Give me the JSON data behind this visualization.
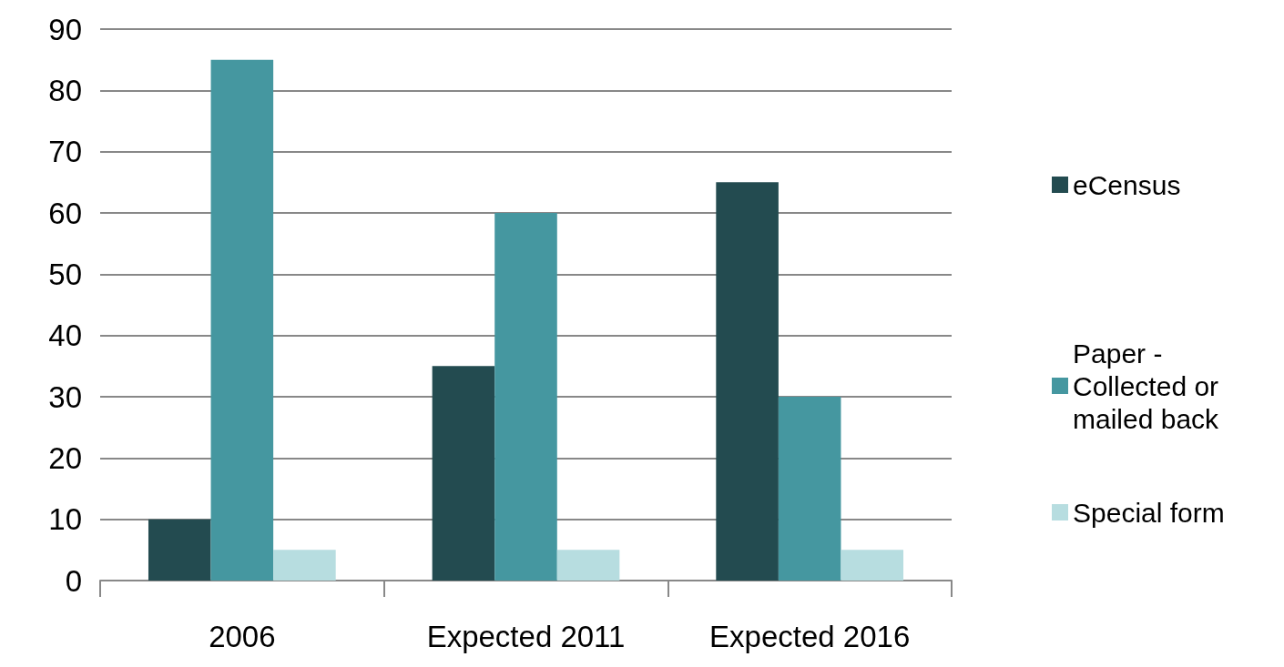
{
  "chart_data": {
    "type": "bar",
    "categories": [
      "2006",
      "Expected 2011",
      "Expected 2016"
    ],
    "series": [
      {
        "name": "eCensus",
        "color": "#234b50",
        "values": [
          10,
          35,
          65
        ]
      },
      {
        "name": "Paper - Collected or mailed back",
        "color": "#4597a0",
        "values": [
          85,
          60,
          30
        ]
      },
      {
        "name": "Special form",
        "color": "#b7dde0",
        "values": [
          5,
          5,
          5
        ]
      }
    ],
    "ylim": [
      0,
      90
    ],
    "yticks": [
      0,
      10,
      20,
      30,
      40,
      50,
      60,
      70,
      80,
      90
    ],
    "grid": "y",
    "legend": "right"
  }
}
